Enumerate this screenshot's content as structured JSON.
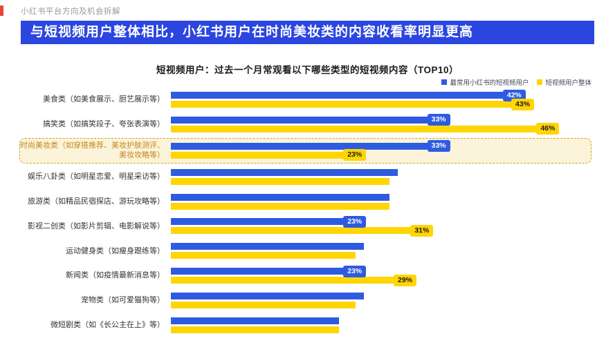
{
  "page": {
    "header": "小红书平台方向及机会拆解",
    "banner": "与短视频用户整体相比，小红书用户在时尚美妆类的内容收看率明显更高"
  },
  "chart_data": {
    "type": "bar",
    "orientation": "horizontal",
    "title": "短视频用户：过去一个月常观看以下哪些类型的短视频内容（TOP10）",
    "xlim": [
      0,
      50
    ],
    "grid": false,
    "legend_position": "top-right",
    "legend": [
      {
        "name": "最常用小红书的短视频用户",
        "color": "#2e5be0"
      },
      {
        "name": "短视频用户整体",
        "color": "#ffd503"
      }
    ],
    "categories": [
      "美食类（如美食展示、厨艺展示等）",
      "搞笑类（如搞笑段子、夸张表演等）",
      "时尚美妆类（如穿搭推荐、美妆护肤测评、美妆攻略等）",
      "娱乐八卦类（如明星恋爱、明星采访等）",
      "旅游类（如精品民宿探店、游玩攻略等）",
      "影视二创类（如影片剪辑、电影解说等）",
      "运动健身类（如瘦身跟练等）",
      "新闻类（如疫情最新消息等）",
      "宠物类（如可爱猫狗等）",
      "微短剧类（如《长公主在上》等）"
    ],
    "series": [
      {
        "name": "最常用小红书的短视频用户",
        "values": [
          42,
          33,
          33,
          27,
          26,
          23,
          23,
          23,
          23,
          20
        ],
        "labels": [
          "42%",
          "33%",
          "33%",
          "",
          "",
          "23%",
          "",
          "23%",
          "",
          ""
        ]
      },
      {
        "name": "短视频用户整体",
        "values": [
          43,
          46,
          23,
          26,
          26,
          31,
          22,
          29,
          22,
          20
        ],
        "labels": [
          "43%",
          "46%",
          "23%",
          "",
          "",
          "31%",
          "",
          "29%",
          "",
          ""
        ]
      }
    ],
    "highlight_index": 2
  }
}
